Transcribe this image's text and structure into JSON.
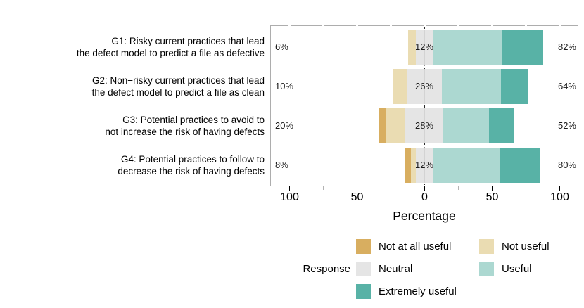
{
  "chart_data": {
    "type": "bar",
    "variant": "diverging-stacked-likert",
    "title": "",
    "xlabel": "Percentage",
    "legend_title": "Response",
    "legend_position": "bottom",
    "xlim": [
      -114,
      114
    ],
    "x_major_ticks": [
      -100,
      -50,
      0,
      50,
      100
    ],
    "x_tick_labels": [
      "100",
      "50",
      "0",
      "50",
      "100"
    ],
    "x_minor_ticks": [
      -75,
      -25,
      25,
      75
    ],
    "zero_line_color": "#2B2B2B",
    "panel_border_color": "#ADADAD",
    "levels": [
      {
        "label": "Not at all useful",
        "color": "#D8AE60"
      },
      {
        "label": "Not useful",
        "color": "#EADCB2"
      },
      {
        "label": "Neutral",
        "color": "#E5E5E5"
      },
      {
        "label": "Useful",
        "color": "#ACD8D1"
      },
      {
        "label": "Extremely useful",
        "color": "#58B2A6"
      }
    ],
    "groups": [
      {
        "label_lines": [
          "G1: Risky current practices that lead",
          "the defect model to predict a file as defective"
        ],
        "values": [
          0,
          6,
          12,
          52,
          30
        ],
        "pct_low": "6%",
        "pct_neutral": "12%",
        "pct_high": "82%"
      },
      {
        "label_lines": [
          "G2: Non−risky current practices that lead",
          "the defect model to predict a file as clean"
        ],
        "values": [
          0,
          10,
          26,
          44,
          20
        ],
        "pct_low": "10%",
        "pct_neutral": "26%",
        "pct_high": "64%"
      },
      {
        "label_lines": [
          "G3: Potential practices to avoid to",
          "not increase the risk of having defects"
        ],
        "values": [
          6,
          14,
          28,
          34,
          18
        ],
        "pct_low": "20%",
        "pct_neutral": "28%",
        "pct_high": "52%"
      },
      {
        "label_lines": [
          "G4: Potential practices to follow to",
          "decrease the risk of having defects"
        ],
        "values": [
          4,
          4,
          12,
          50,
          30
        ],
        "pct_low": "8%",
        "pct_neutral": "12%",
        "pct_high": "80%"
      }
    ]
  }
}
